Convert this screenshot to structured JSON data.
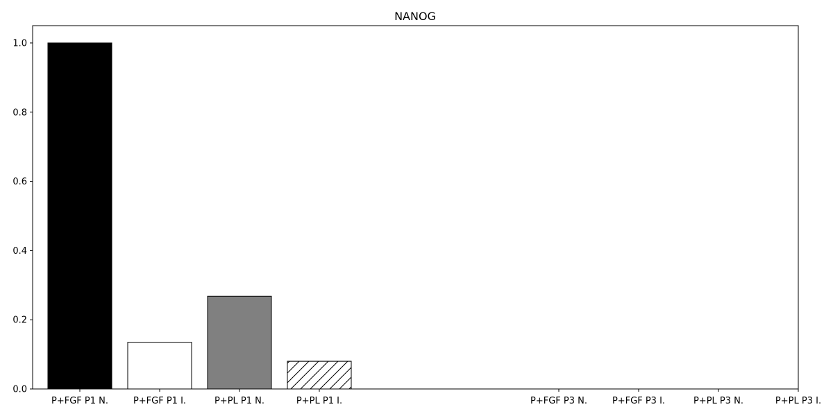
{
  "chart_data": {
    "type": "bar",
    "title": "NANOG",
    "xlabel": "",
    "ylabel": "",
    "categories": [
      "P+FGF P1 N.",
      "P+FGF P1 I.",
      "P+PL P1 N.",
      "P+PL P1 I.",
      "",
      "",
      "P+FGF P3 N.",
      "P+FGF P3 I.",
      "P+PL P3 N.",
      "P+PL P3 I."
    ],
    "values": [
      1.0,
      0.135,
      0.268,
      0.08,
      null,
      null,
      null,
      null,
      null,
      null
    ],
    "bar_styles": [
      {
        "fill": "#000000",
        "hatch": false
      },
      {
        "fill": "#ffffff",
        "hatch": false
      },
      {
        "fill": "#808080",
        "hatch": false
      },
      {
        "fill": "#ffffff",
        "hatch": true
      },
      null,
      null,
      null,
      null,
      null,
      null
    ],
    "ylim": [
      0,
      1.05
    ],
    "yticks": [
      0.0,
      0.2,
      0.4,
      0.6,
      0.8,
      1.0
    ],
    "ytick_labels": [
      "0.0",
      "0.2",
      "0.4",
      "0.6",
      "0.8",
      "1.0"
    ],
    "grid": false,
    "legend": "none",
    "colors": {
      "edge": "#000000",
      "background": "#ffffff"
    }
  }
}
